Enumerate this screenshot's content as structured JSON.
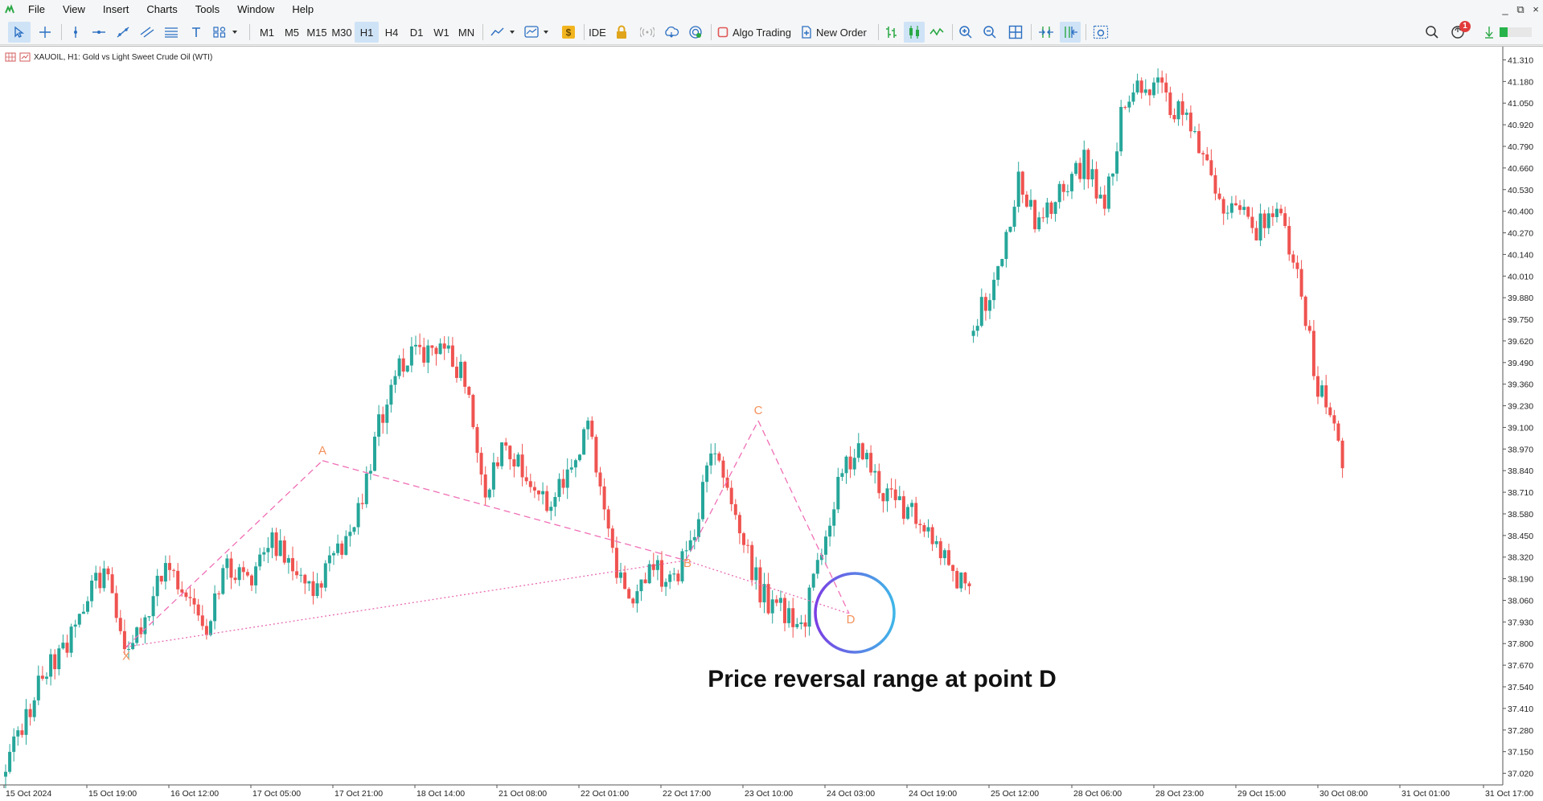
{
  "menu": [
    "File",
    "View",
    "Insert",
    "Charts",
    "Tools",
    "Window",
    "Help"
  ],
  "window_controls": {
    "minimize": "_",
    "restore": "⧉",
    "close": "×"
  },
  "timeframes": [
    "M1",
    "M5",
    "M15",
    "M30",
    "H1",
    "H4",
    "D1",
    "W1",
    "MN"
  ],
  "active_timeframe": "H1",
  "toolbar": {
    "ide_label": "IDE",
    "algo_trading_label": "Algo Trading",
    "new_order_label": "New Order",
    "notification_count": "1"
  },
  "chart": {
    "symbol_header": "XAUOIL, H1:  Gold vs Light Sweet Crude Oil (WTI)",
    "annotation": "Price reversal range at point D",
    "colors": {
      "bull": "#26a69a",
      "bear": "#ef5350",
      "pattern_dashed": "#f06fb6",
      "pattern_dotted": "#e86bb3",
      "point_label": "#f4915b",
      "circle_a": "#7b3fe4",
      "circle_b": "#3fb6e8"
    }
  },
  "chart_data": {
    "type": "candlestick",
    "symbol": "XAUOIL",
    "timeframe": "H1",
    "price_axis": [
      "41.310",
      "41.180",
      "41.050",
      "40.920",
      "40.790",
      "40.660",
      "40.530",
      "40.400",
      "40.270",
      "40.140",
      "40.010",
      "39.880",
      "39.750",
      "39.620",
      "39.490",
      "39.360",
      "39.230",
      "39.100",
      "38.970",
      "38.840",
      "38.710",
      "38.580",
      "38.450",
      "38.320",
      "38.190",
      "38.060",
      "37.930",
      "37.800",
      "37.670",
      "37.540",
      "37.410",
      "37.280",
      "37.150",
      "37.020"
    ],
    "time_axis": [
      "15 Oct 2024",
      "15 Oct 19:00",
      "16 Oct 12:00",
      "17 Oct 05:00",
      "17 Oct 21:00",
      "18 Oct 14:00",
      "21 Oct 08:00",
      "22 Oct 01:00",
      "22 Oct 17:00",
      "23 Oct 10:00",
      "24 Oct 03:00",
      "24 Oct 19:00",
      "25 Oct 12:00",
      "28 Oct 06:00",
      "28 Oct 23:00",
      "29 Oct 15:00",
      "30 Oct 08:00",
      "31 Oct 01:00",
      "31 Oct 17:00"
    ],
    "ylim": [
      36.95,
      41.38
    ],
    "pattern": {
      "name": "XABCD",
      "points": [
        {
          "label": "X",
          "time": "15 Oct 20:00",
          "price": 37.78
        },
        {
          "label": "A",
          "time": "16 Oct 23:00",
          "price": 38.9
        },
        {
          "label": "B",
          "time": "22 Oct 18:00",
          "price": 38.3
        },
        {
          "label": "C",
          "time": "23 Oct 10:00",
          "price": 39.14
        },
        {
          "label": "D",
          "time": "24 Oct 02:00",
          "price": 37.98
        }
      ]
    },
    "anchor_closes": [
      37.0,
      37.3,
      37.6,
      37.75,
      38.05,
      38.25,
      37.72,
      37.9,
      38.28,
      38.1,
      37.93,
      38.25,
      38.18,
      38.45,
      38.2,
      38.12,
      38.35,
      38.6,
      39.1,
      39.48,
      39.53,
      39.62,
      39.4,
      38.75,
      39.02,
      38.8,
      38.62,
      38.78,
      39.1,
      38.45,
      38.0,
      38.3,
      38.15,
      38.4,
      39.02,
      38.5,
      38.1,
      38.0,
      37.85,
      38.4,
      38.85,
      38.95,
      38.7,
      38.63,
      38.55,
      38.3,
      38.1,
      null,
      39.7,
      39.96,
      40.6,
      40.3,
      40.5,
      40.7,
      40.4,
      41.1,
      41.2,
      41.05,
      40.9,
      40.5,
      40.4,
      40.3,
      40.4,
      40.0,
      39.36,
      38.92
    ]
  }
}
